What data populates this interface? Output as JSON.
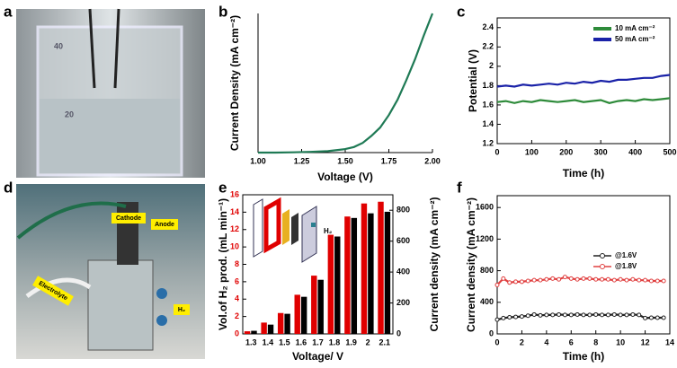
{
  "panel_labels": [
    "a",
    "b",
    "c",
    "d",
    "e",
    "f"
  ],
  "photo_a": {
    "labels": [
      "40",
      "20"
    ]
  },
  "photo_d": {
    "labels": [
      "Cathode",
      "Anode",
      "Electrolyte",
      "H₂"
    ]
  },
  "chart_data": [
    {
      "type": "line",
      "xlabel": "Voltage (V)",
      "ylabel": "Current Density (mA cm⁻²)",
      "color": "#1f7a55",
      "x": [
        1.0,
        1.1,
        1.2,
        1.3,
        1.4,
        1.5,
        1.55,
        1.6,
        1.65,
        1.7,
        1.75,
        1.8,
        1.85,
        1.9,
        1.95,
        2.0
      ],
      "values": [
        0,
        0,
        0.2,
        0.5,
        1,
        2.5,
        4,
        7,
        12,
        18,
        27,
        38,
        52,
        67,
        84,
        100
      ],
      "xlim": [
        1.0,
        2.0
      ],
      "xticks": [
        {
          "value": 1,
          "label": "1.00"
        },
        {
          "value": 1.25,
          "label": "1.25"
        },
        {
          "value": 1.5,
          "label": "1.50"
        },
        {
          "value": 1.75,
          "label": "1.75"
        },
        {
          "value": 2,
          "label": "2.00"
        }
      ],
      "ylim": [
        0,
        100
      ]
    },
    {
      "type": "line",
      "xlabel": "Time (h)",
      "ylabel": "Potential (V)",
      "legend": "upper right",
      "x": [
        0,
        25,
        50,
        75,
        100,
        125,
        150,
        175,
        200,
        225,
        250,
        275,
        300,
        325,
        350,
        375,
        400,
        425,
        450,
        475,
        500
      ],
      "series": [
        {
          "name": "10 mA cm⁻²",
          "color": "#2e8b3a",
          "values": [
            1.63,
            1.64,
            1.62,
            1.64,
            1.63,
            1.65,
            1.64,
            1.63,
            1.64,
            1.65,
            1.63,
            1.64,
            1.65,
            1.62,
            1.64,
            1.65,
            1.64,
            1.66,
            1.65,
            1.66,
            1.67
          ]
        },
        {
          "name": "50 mA cm⁻²",
          "color": "#1a22a8",
          "values": [
            1.79,
            1.8,
            1.79,
            1.81,
            1.8,
            1.81,
            1.82,
            1.81,
            1.83,
            1.82,
            1.84,
            1.83,
            1.85,
            1.84,
            1.86,
            1.86,
            1.87,
            1.88,
            1.88,
            1.9,
            1.91
          ]
        }
      ],
      "xlim": [
        0,
        500
      ],
      "xticks": [
        0,
        100,
        200,
        300,
        400,
        500
      ],
      "ylim": [
        1.2,
        2.5
      ],
      "yticks": [
        1.2,
        1.4,
        1.6,
        1.8,
        2.0,
        2.2,
        2.4
      ]
    },
    {
      "type": "bar",
      "xlabel": "Voltage/ V",
      "ylabel": "Vol.of H₂ prod. (mL min⁻¹)",
      "y2label": "Current density (mA cm⁻²)",
      "annotations": [
        "H₂"
      ],
      "categories": [
        "1.3",
        "1.4",
        "1.5",
        "1.6",
        "1.7",
        "1.8",
        "1.9",
        "2",
        "2.1"
      ],
      "series": [
        {
          "color": "#e00000",
          "values": [
            0.3,
            1.3,
            2.4,
            4.5,
            6.7,
            11.4,
            13.5,
            15,
            15.2
          ]
        },
        {
          "color": "#000000",
          "axis": "y2",
          "values": [
            20,
            60,
            130,
            240,
            350,
            630,
            750,
            780,
            790
          ]
        }
      ],
      "ylim": [
        0,
        16
      ],
      "yticks": [
        0,
        2,
        4,
        6,
        8,
        10,
        12,
        14,
        16
      ],
      "y2lim": [
        0,
        900
      ],
      "y2ticks": [
        0,
        200,
        400,
        600,
        800
      ]
    },
    {
      "type": "line",
      "markers": true,
      "xlabel": "Time (h)",
      "ylabel": "Current density (mA cm⁻²)",
      "legend": "center right",
      "x": [
        0,
        0.5,
        1,
        1.5,
        2,
        2.5,
        3,
        3.5,
        4,
        4.5,
        5,
        5.5,
        6,
        6.5,
        7,
        7.5,
        8,
        8.5,
        9,
        9.5,
        10,
        10.5,
        11,
        11.5,
        12,
        12.5,
        13,
        13.5
      ],
      "series": [
        {
          "name": "@1.6V",
          "color": "#222222",
          "values": [
            180,
            200,
            210,
            215,
            220,
            230,
            245,
            235,
            240,
            240,
            245,
            240,
            240,
            245,
            240,
            240,
            245,
            240,
            240,
            245,
            240,
            240,
            245,
            240,
            200,
            205,
            205,
            205
          ]
        },
        {
          "name": "@1.8V",
          "color": "#e04040",
          "values": [
            620,
            700,
            650,
            660,
            660,
            670,
            680,
            680,
            690,
            700,
            690,
            720,
            700,
            690,
            700,
            700,
            690,
            690,
            690,
            680,
            690,
            680,
            690,
            680,
            680,
            670,
            670,
            670
          ]
        }
      ],
      "xlim": [
        0,
        14
      ],
      "xticks": [
        0,
        2,
        4,
        6,
        8,
        10,
        12,
        14
      ],
      "ylim": [
        0,
        1750
      ],
      "yticks": [
        0,
        400,
        800,
        1200,
        1600
      ]
    }
  ]
}
